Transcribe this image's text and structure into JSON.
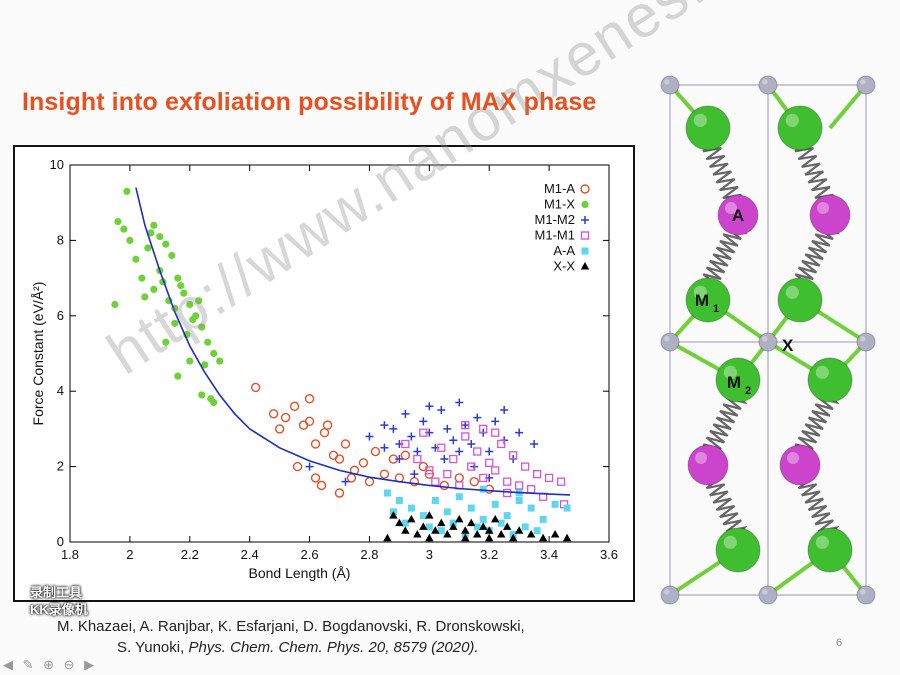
{
  "title": "Insight into exfoliation possibility of MAX phase",
  "citation_line1": "M. Khazaei, A. Ranjbar, K. Esfarjani, D. Bogdanovski, R. Dronskowski,",
  "citation_line2_prefix": "S. Yunoki, ",
  "citation_line2_italic": "Phys. Chem. Chem. Phys. 20, 8579 (2020).",
  "page_number": "6",
  "watermark": "http://www.nanomxenes.com",
  "logo_text_1": "录制工具",
  "logo_text_2": "KK录像机",
  "nav_icons": "◀ ✎ ⊕ ⊖ ▶",
  "structure_labels": {
    "a": "A",
    "m1": "M",
    "m1_sub": "1",
    "x": "X",
    "m2": "M",
    "m2_sub": "2"
  },
  "colors": {
    "title": "#e8501f",
    "fit_line": "#1c2fbf",
    "m1_a": "#e0502a",
    "m1_x": "#6fd13a",
    "m1_m2": "#2a3bd6",
    "m1_m1": "#d455d4",
    "a_a": "#5fd6f0",
    "x_x": "#000000",
    "atom_m": "#3fbf2f",
    "atom_a": "#cc44cc",
    "atom_x": "#b0b0c4"
  },
  "chart_data": {
    "type": "scatter",
    "title": "",
    "xlabel": "Bond Length (Å)",
    "ylabel": "Force Constant (eV/Å²)",
    "xlim": [
      1.8,
      3.6
    ],
    "ylim": [
      0,
      10
    ],
    "xticks": [
      "1.8",
      "2",
      "2.2",
      "2.4",
      "2.6",
      "2.8",
      "3",
      "3.2",
      "3.4",
      "3.6"
    ],
    "yticks": [
      "0",
      "2",
      "4",
      "6",
      "8",
      "10"
    ],
    "legend_position": "top-right",
    "series": [
      {
        "name": "M1-A",
        "marker": "open-circle",
        "color": "#e0502a",
        "points": [
          [
            2.42,
            4.1
          ],
          [
            2.48,
            3.4
          ],
          [
            2.52,
            3.3
          ],
          [
            2.55,
            3.6
          ],
          [
            2.58,
            3.1
          ],
          [
            2.6,
            3.8
          ],
          [
            2.62,
            2.6
          ],
          [
            2.65,
            2.9
          ],
          [
            2.68,
            2.3
          ],
          [
            2.7,
            2.2
          ],
          [
            2.72,
            2.6
          ],
          [
            2.75,
            1.9
          ],
          [
            2.78,
            2.1
          ],
          [
            2.8,
            1.6
          ],
          [
            2.82,
            2.4
          ],
          [
            2.85,
            1.8
          ],
          [
            2.88,
            2.2
          ],
          [
            2.9,
            1.7
          ],
          [
            2.92,
            2.3
          ],
          [
            2.95,
            1.6
          ],
          [
            2.98,
            2.0
          ],
          [
            3.0,
            1.8
          ],
          [
            3.05,
            1.5
          ],
          [
            3.1,
            1.7
          ],
          [
            3.15,
            1.6
          ],
          [
            3.2,
            1.4
          ],
          [
            2.64,
            1.5
          ],
          [
            2.7,
            1.3
          ],
          [
            2.74,
            1.7
          ],
          [
            2.66,
            3.1
          ],
          [
            2.6,
            3.2
          ],
          [
            2.5,
            3.0
          ],
          [
            2.56,
            2.0
          ],
          [
            2.62,
            1.7
          ]
        ]
      },
      {
        "name": "M1-X",
        "marker": "filled-circle",
        "color": "#6fd13a",
        "points": [
          [
            1.99,
            9.3
          ],
          [
            1.96,
            8.5
          ],
          [
            1.98,
            8.3
          ],
          [
            2.0,
            8.0
          ],
          [
            2.02,
            7.5
          ],
          [
            2.04,
            7.0
          ],
          [
            2.06,
            7.8
          ],
          [
            2.08,
            8.4
          ],
          [
            2.1,
            8.1
          ],
          [
            2.12,
            7.9
          ],
          [
            2.14,
            7.6
          ],
          [
            2.16,
            7.0
          ],
          [
            2.18,
            6.6
          ],
          [
            2.2,
            6.3
          ],
          [
            2.22,
            6.0
          ],
          [
            2.24,
            5.7
          ],
          [
            2.26,
            5.3
          ],
          [
            2.28,
            5.0
          ],
          [
            2.3,
            4.8
          ],
          [
            2.05,
            6.5
          ],
          [
            2.08,
            6.7
          ],
          [
            2.11,
            6.9
          ],
          [
            2.13,
            6.4
          ],
          [
            2.15,
            6.2
          ],
          [
            2.17,
            6.8
          ],
          [
            2.19,
            5.5
          ],
          [
            2.21,
            5.9
          ],
          [
            2.23,
            6.4
          ],
          [
            2.25,
            4.7
          ],
          [
            2.27,
            3.8
          ],
          [
            2.2,
            4.8
          ],
          [
            2.15,
            5.8
          ],
          [
            2.1,
            7.2
          ],
          [
            2.07,
            8.2
          ],
          [
            1.95,
            6.3
          ],
          [
            2.16,
            4.4
          ],
          [
            2.24,
            3.9
          ],
          [
            2.28,
            3.7
          ],
          [
            2.12,
            5.3
          ]
        ]
      },
      {
        "name": "M1-M2",
        "marker": "plus",
        "color": "#2a3bd6",
        "points": [
          [
            2.6,
            2.0
          ],
          [
            2.72,
            1.6
          ],
          [
            2.8,
            2.8
          ],
          [
            2.85,
            2.5
          ],
          [
            2.88,
            3.0
          ],
          [
            2.9,
            2.2
          ],
          [
            2.92,
            3.4
          ],
          [
            2.94,
            2.8
          ],
          [
            2.96,
            2.4
          ],
          [
            2.98,
            3.2
          ],
          [
            3.0,
            2.9
          ],
          [
            3.02,
            2.5
          ],
          [
            3.04,
            3.5
          ],
          [
            3.06,
            3.0
          ],
          [
            3.08,
            2.7
          ],
          [
            3.1,
            3.7
          ],
          [
            3.12,
            3.1
          ],
          [
            3.14,
            2.6
          ],
          [
            3.16,
            3.3
          ],
          [
            3.18,
            2.9
          ],
          [
            3.2,
            2.4
          ],
          [
            3.22,
            3.2
          ],
          [
            3.25,
            2.7
          ],
          [
            3.28,
            2.2
          ],
          [
            3.3,
            2.9
          ],
          [
            3.05,
            2.2
          ],
          [
            3.15,
            2.0
          ],
          [
            2.95,
            1.8
          ],
          [
            3.2,
            1.7
          ],
          [
            3.1,
            2.4
          ],
          [
            3.0,
            3.6
          ],
          [
            2.9,
            2.6
          ],
          [
            2.85,
            3.1
          ],
          [
            3.25,
            3.5
          ],
          [
            3.35,
            2.6
          ]
        ]
      },
      {
        "name": "M1-M1",
        "marker": "open-square",
        "color": "#d455d4",
        "points": [
          [
            2.92,
            2.6
          ],
          [
            2.96,
            2.2
          ],
          [
            3.0,
            1.9
          ],
          [
            3.04,
            2.5
          ],
          [
            3.08,
            2.2
          ],
          [
            3.12,
            2.8
          ],
          [
            3.16,
            2.4
          ],
          [
            3.2,
            2.1
          ],
          [
            3.24,
            2.6
          ],
          [
            3.28,
            2.3
          ],
          [
            3.32,
            2.0
          ],
          [
            3.36,
            1.8
          ],
          [
            3.4,
            1.7
          ],
          [
            3.44,
            1.6
          ],
          [
            3.02,
            1.6
          ],
          [
            3.06,
            1.8
          ],
          [
            3.1,
            1.5
          ],
          [
            3.14,
            2.0
          ],
          [
            3.18,
            1.7
          ],
          [
            3.22,
            1.9
          ],
          [
            3.26,
            1.6
          ],
          [
            3.3,
            1.5
          ],
          [
            3.34,
            1.4
          ],
          [
            2.98,
            2.9
          ],
          [
            3.12,
            3.1
          ],
          [
            3.18,
            3.0
          ],
          [
            3.22,
            2.9
          ],
          [
            3.26,
            1.3
          ],
          [
            3.38,
            1.2
          ],
          [
            3.45,
            1.0
          ]
        ]
      },
      {
        "name": "A-A",
        "marker": "filled-square",
        "color": "#5fd6f0",
        "points": [
          [
            2.86,
            1.3
          ],
          [
            2.9,
            1.1
          ],
          [
            2.94,
            0.9
          ],
          [
            2.98,
            0.7
          ],
          [
            3.02,
            1.1
          ],
          [
            3.06,
            0.8
          ],
          [
            3.1,
            1.2
          ],
          [
            3.14,
            0.9
          ],
          [
            3.18,
            0.6
          ],
          [
            3.22,
            1.0
          ],
          [
            3.26,
            0.7
          ],
          [
            3.3,
            1.1
          ],
          [
            3.34,
            0.9
          ],
          [
            3.38,
            0.6
          ],
          [
            3.42,
            1.0
          ],
          [
            3.46,
            0.9
          ],
          [
            3.0,
            0.4
          ],
          [
            3.04,
            0.3
          ],
          [
            3.08,
            0.5
          ],
          [
            3.12,
            0.2
          ],
          [
            3.16,
            0.4
          ],
          [
            3.2,
            0.3
          ],
          [
            3.24,
            0.5
          ],
          [
            3.28,
            0.2
          ],
          [
            3.32,
            0.4
          ],
          [
            3.36,
            0.3
          ],
          [
            2.92,
            0.5
          ],
          [
            2.88,
            0.8
          ],
          [
            3.18,
            1.4
          ],
          [
            3.3,
            1.3
          ]
        ]
      },
      {
        "name": "X-X",
        "marker": "triangle",
        "color": "#000000",
        "points": [
          [
            2.88,
            0.7
          ],
          [
            2.9,
            0.5
          ],
          [
            2.92,
            0.3
          ],
          [
            2.94,
            0.6
          ],
          [
            2.96,
            0.2
          ],
          [
            2.98,
            0.4
          ],
          [
            3.0,
            0.7
          ],
          [
            3.02,
            0.3
          ],
          [
            3.04,
            0.5
          ],
          [
            3.06,
            0.2
          ],
          [
            3.08,
            0.4
          ],
          [
            3.1,
            0.6
          ],
          [
            3.12,
            0.3
          ],
          [
            3.14,
            0.5
          ],
          [
            3.16,
            0.2
          ],
          [
            3.18,
            0.4
          ],
          [
            3.2,
            0.3
          ],
          [
            3.22,
            0.6
          ],
          [
            3.24,
            0.2
          ],
          [
            3.26,
            0.4
          ],
          [
            3.28,
            0.1
          ],
          [
            3.3,
            0.3
          ],
          [
            3.34,
            0.2
          ],
          [
            3.38,
            0.1
          ],
          [
            3.42,
            0.2
          ],
          [
            3.46,
            0.1
          ],
          [
            2.86,
            0.1
          ],
          [
            3.0,
            0.1
          ],
          [
            3.12,
            0.1
          ],
          [
            3.2,
            0.1
          ]
        ]
      }
    ],
    "fit_curve": [
      [
        2.02,
        9.4
      ],
      [
        2.05,
        8.4
      ],
      [
        2.1,
        7.2
      ],
      [
        2.15,
        6.1
      ],
      [
        2.2,
        5.2
      ],
      [
        2.25,
        4.5
      ],
      [
        2.3,
        3.9
      ],
      [
        2.35,
        3.4
      ],
      [
        2.4,
        3.0
      ],
      [
        2.5,
        2.5
      ],
      [
        2.6,
        2.15
      ],
      [
        2.7,
        1.9
      ],
      [
        2.8,
        1.72
      ],
      [
        2.9,
        1.6
      ],
      [
        3.0,
        1.5
      ],
      [
        3.1,
        1.42
      ],
      [
        3.2,
        1.36
      ],
      [
        3.3,
        1.31
      ],
      [
        3.4,
        1.27
      ],
      [
        3.47,
        1.25
      ]
    ]
  }
}
